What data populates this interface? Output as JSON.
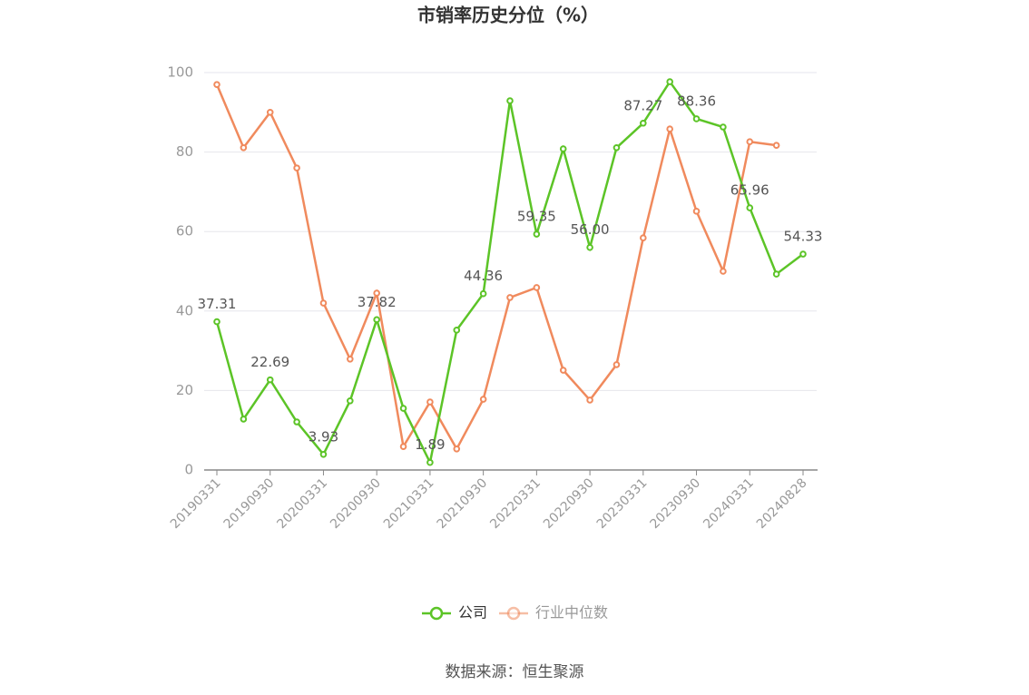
{
  "chart_data": {
    "type": "line",
    "title": "市销率历史分位（%）",
    "categories": [
      "20190331",
      null,
      "20190930",
      null,
      "20200331",
      null,
      "20200930",
      null,
      "20210331",
      null,
      "20210930",
      null,
      "20220331",
      null,
      "20220930",
      null,
      "20230331",
      null,
      "20230930",
      null,
      "20240331",
      null,
      "20240828"
    ],
    "series": [
      {
        "name": "公司",
        "color": "#5cc427",
        "values": [
          37.31,
          12.8,
          22.69,
          12.1,
          3.93,
          17.4,
          37.82,
          15.5,
          1.89,
          35.2,
          44.36,
          92.9,
          59.35,
          80.8,
          56.0,
          81.1,
          87.27,
          97.7,
          88.36,
          86.3,
          65.96,
          49.3,
          54.33
        ],
        "value_labels": [
          "37.31",
          null,
          "22.69",
          null,
          "3.93",
          null,
          "37.82",
          null,
          "1.89",
          null,
          "44.36",
          null,
          "59.35",
          null,
          "56.00",
          null,
          "87.27",
          null,
          "88.36",
          null,
          "65.96",
          null,
          "54.33"
        ]
      },
      {
        "name": "行业中位数",
        "color": "#f08a5d",
        "values": [
          97.0,
          81.1,
          90.0,
          76.0,
          42.0,
          27.9,
          44.5,
          5.9,
          17.1,
          5.3,
          17.8,
          43.4,
          45.9,
          25.1,
          17.6,
          26.5,
          58.4,
          85.8,
          65.1,
          50.0,
          82.6,
          81.7,
          null
        ]
      }
    ],
    "ylim": [
      0,
      100
    ],
    "yticks": [
      0,
      20,
      40,
      60,
      80,
      100
    ],
    "grid": true,
    "source": "数据来源：恒生聚源"
  }
}
